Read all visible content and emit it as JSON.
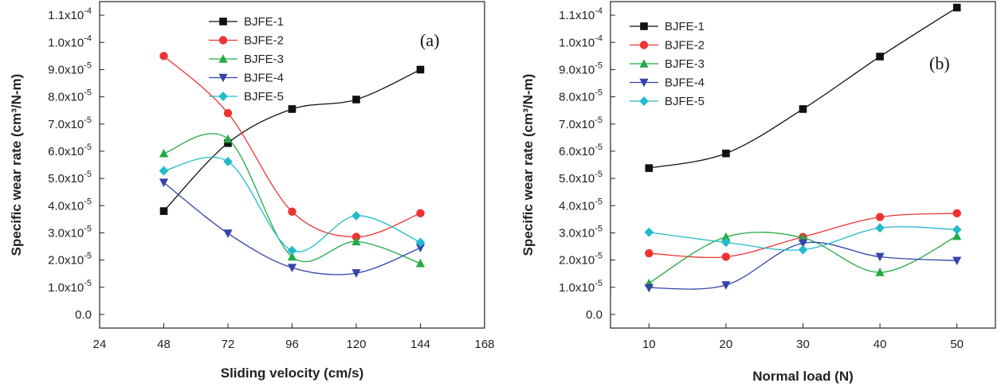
{
  "charts": [
    {
      "panel_label": "(a)",
      "type": "line",
      "xlabel": "Sliding velocity (cm/s)",
      "ylabel": "Specific wear rate (cm³/N-m)",
      "xlim": [
        24,
        168
      ],
      "ylim": [
        -5e-06,
        0.000115
      ],
      "x_ticks": [
        24,
        48,
        72,
        96,
        120,
        144,
        168
      ],
      "x": [
        48,
        72,
        96,
        120,
        144
      ],
      "colors": [
        "#111111",
        "#ee3333",
        "#22aa44",
        "#3344aa",
        "#22bbcc"
      ],
      "markers": [
        "square",
        "circle",
        "triangle-up",
        "triangle-down",
        "diamond"
      ],
      "series": [
        {
          "name": "BJFE-1",
          "values": [
            3.8e-05,
            6.3e-05,
            7.55e-05,
            7.9e-05,
            9e-05
          ]
        },
        {
          "name": "BJFE-2",
          "values": [
            9.5e-05,
            7.4e-05,
            3.78e-05,
            2.85e-05,
            3.72e-05
          ]
        },
        {
          "name": "BJFE-3",
          "values": [
            5.92e-05,
            6.45e-05,
            2.12e-05,
            2.68e-05,
            1.88e-05
          ]
        },
        {
          "name": "BJFE-4",
          "values": [
            4.85e-05,
            2.98e-05,
            1.72e-05,
            1.52e-05,
            2.45e-05
          ]
        },
        {
          "name": "BJFE-5",
          "values": [
            5.28e-05,
            5.62e-05,
            2.35e-05,
            3.63e-05,
            2.65e-05
          ]
        }
      ]
    },
    {
      "panel_label": "(b)",
      "type": "line",
      "xlabel": "Normal load (N)",
      "ylabel": "Specific wear rate (cm³/N-m)",
      "xlim": [
        5,
        55
      ],
      "ylim": [
        -5e-06,
        0.000115
      ],
      "x_ticks": [
        10,
        20,
        30,
        40,
        50
      ],
      "x": [
        10,
        20,
        30,
        40,
        50
      ],
      "colors": [
        "#111111",
        "#ee3333",
        "#22aa44",
        "#3344aa",
        "#22bbcc"
      ],
      "markers": [
        "square",
        "circle",
        "triangle-up",
        "triangle-down",
        "diamond"
      ],
      "series": [
        {
          "name": "BJFE-1",
          "values": [
            5.38e-05,
            5.92e-05,
            7.55e-05,
            9.48e-05,
            0.0001128
          ]
        },
        {
          "name": "BJFE-2",
          "values": [
            2.25e-05,
            2.12e-05,
            2.85e-05,
            3.58e-05,
            3.72e-05
          ]
        },
        {
          "name": "BJFE-3",
          "values": [
            1.15e-05,
            2.85e-05,
            2.82e-05,
            1.55e-05,
            2.88e-05
          ]
        },
        {
          "name": "BJFE-4",
          "values": [
            9.8e-06,
            1.08e-05,
            2.62e-05,
            2.12e-05,
            1.98e-05
          ]
        },
        {
          "name": "BJFE-5",
          "values": [
            3.02e-05,
            2.65e-05,
            2.38e-05,
            3.18e-05,
            3.12e-05
          ]
        }
      ]
    }
  ],
  "y_ticks": [
    {
      "value": 0,
      "mant": "0.0",
      "exp": ""
    },
    {
      "value": 1e-05,
      "mant": "1.0x10",
      "exp": "-5"
    },
    {
      "value": 2e-05,
      "mant": "2.0x10",
      "exp": "-5"
    },
    {
      "value": 3e-05,
      "mant": "3.0x10",
      "exp": "-5"
    },
    {
      "value": 4e-05,
      "mant": "4.0x10",
      "exp": "-5"
    },
    {
      "value": 5e-05,
      "mant": "5.0x10",
      "exp": "-5"
    },
    {
      "value": 6e-05,
      "mant": "6.0x10",
      "exp": "-5"
    },
    {
      "value": 7e-05,
      "mant": "7.0x10",
      "exp": "-5"
    },
    {
      "value": 8e-05,
      "mant": "8.0x10",
      "exp": "-5"
    },
    {
      "value": 9e-05,
      "mant": "9.0x10",
      "exp": "-5"
    },
    {
      "value": 0.0001,
      "mant": "1.0x10",
      "exp": "-4"
    },
    {
      "value": 0.00011,
      "mant": "1.1x10",
      "exp": "-4"
    }
  ]
}
